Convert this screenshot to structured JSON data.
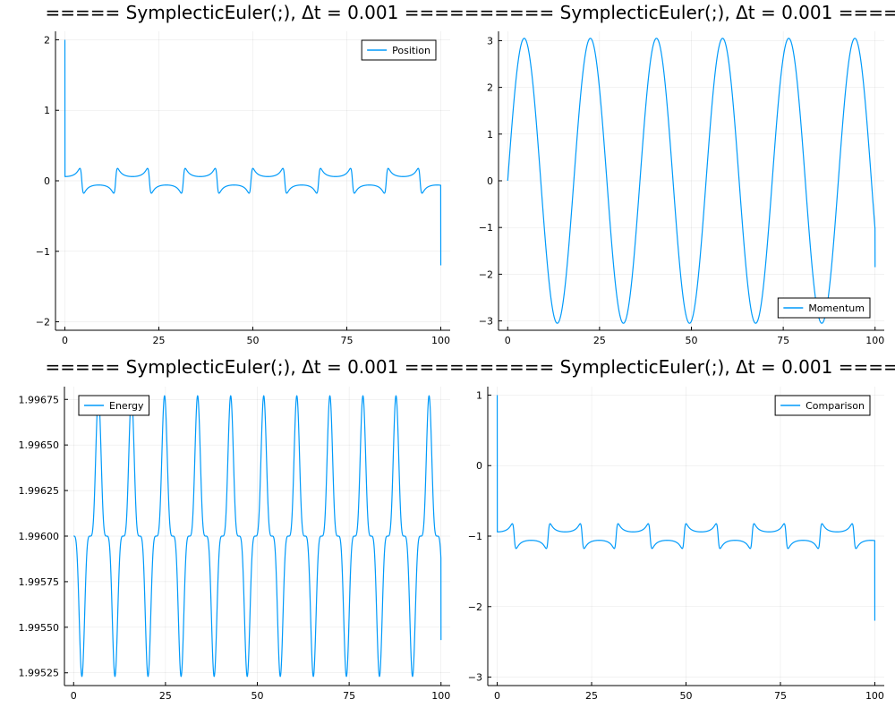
{
  "chart_data": [
    {
      "type": "line",
      "title": "===== SymplecticEuler(;), Δt = 0.001 =====",
      "series": [
        {
          "name": "Position",
          "color": "#009AFA",
          "model": "pendulum_position",
          "amplitude": 2,
          "period": 18,
          "shape": 0.97,
          "start": 2,
          "end": -1.2
        }
      ],
      "x_range": [
        0,
        100
      ],
      "y_range": [
        -2,
        2
      ],
      "xticks": [
        0,
        25,
        50,
        75,
        100
      ],
      "xtick_labels": [
        "0",
        "25",
        "50",
        "75",
        "100"
      ],
      "yticks": [
        -2,
        -1,
        0,
        1,
        2
      ],
      "ytick_labels": [
        "−2",
        "−1",
        "0",
        "1",
        "2"
      ],
      "legend_position": "top-right",
      "grid": true
    },
    {
      "type": "line",
      "title": "===== SymplecticEuler(;), Δt = 0.001 =====",
      "series": [
        {
          "name": "Momentum",
          "color": "#009AFA",
          "model": "sine",
          "amplitude": 3.05,
          "period": 18,
          "start": 0,
          "end": -1.85
        }
      ],
      "x_range": [
        0,
        100
      ],
      "y_range": [
        -3,
        3
      ],
      "xticks": [
        0,
        25,
        50,
        75,
        100
      ],
      "xtick_labels": [
        "0",
        "25",
        "50",
        "75",
        "100"
      ],
      "yticks": [
        -3,
        -2,
        -1,
        0,
        1,
        2,
        3
      ],
      "ytick_labels": [
        "−3",
        "−2",
        "−1",
        "0",
        "1",
        "2",
        "3"
      ],
      "legend_position": "bottom-right",
      "grid": true
    },
    {
      "type": "line",
      "title": "===== SymplecticEuler(;), Δt = 0.001 =====",
      "series": [
        {
          "name": "Energy",
          "color": "#009AFA",
          "model": "energy_sawtooth",
          "period": 9,
          "baseline": 1.996,
          "max": 1.99677,
          "min": 1.99523,
          "start": 1.996,
          "end": 1.99543
        }
      ],
      "x_range": [
        0,
        100
      ],
      "y_range": [
        1.99525,
        1.99675
      ],
      "xticks": [
        0,
        25,
        50,
        75,
        100
      ],
      "xtick_labels": [
        "0",
        "25",
        "50",
        "75",
        "100"
      ],
      "yticks": [
        1.99525,
        1.9955,
        1.99575,
        1.996,
        1.99625,
        1.9965,
        1.99675
      ],
      "ytick_labels": [
        "1.99525",
        "1.99550",
        "1.99575",
        "1.99600",
        "1.99625",
        "1.99650",
        "1.99675"
      ],
      "legend_position": "top-left",
      "grid": true
    },
    {
      "type": "line",
      "title": "===== SymplecticEuler(;), Δt = 0.001 =====",
      "series": [
        {
          "name": "Comparison",
          "color": "#009AFA",
          "model": "pendulum_position",
          "amplitude": 2,
          "offset": -1,
          "period": 18,
          "shape": 0.97,
          "start": 1,
          "end": -2.2
        }
      ],
      "x_range": [
        0,
        100
      ],
      "y_range": [
        -3,
        1
      ],
      "xticks": [
        0,
        25,
        50,
        75,
        100
      ],
      "xtick_labels": [
        "0",
        "25",
        "50",
        "75",
        "100"
      ],
      "yticks": [
        -3,
        -2,
        -1,
        0,
        1
      ],
      "ytick_labels": [
        "−3",
        "−2",
        "−1",
        "0",
        "1"
      ],
      "legend_position": "top-right",
      "grid": true
    }
  ]
}
